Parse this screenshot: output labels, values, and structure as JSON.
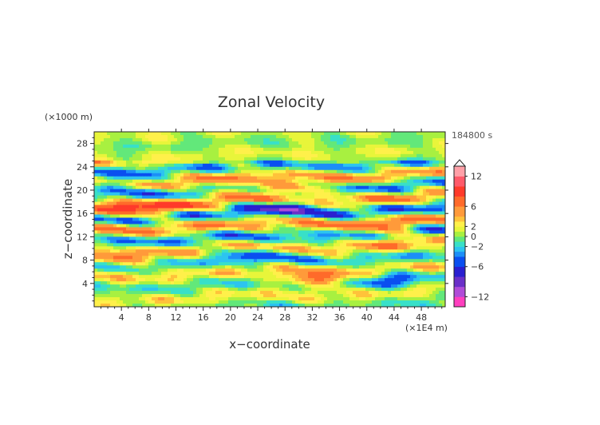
{
  "chart_data": {
    "type": "heatmap",
    "title": "Zonal Velocity",
    "xlabel": "x−coordinate",
    "ylabel": "z−coordinate",
    "x_unit": "(×1E4 m)",
    "y_unit": "(×1000 m)",
    "time_label": "184800 s",
    "xlim": [
      0,
      51.5
    ],
    "ylim": [
      0,
      30
    ],
    "x_ticks": [
      "4",
      "8",
      "12",
      "16",
      "20",
      "24",
      "28",
      "32",
      "36",
      "40",
      "44",
      "48"
    ],
    "x_tick_values": [
      4,
      8,
      12,
      16,
      20,
      24,
      28,
      32,
      36,
      40,
      44,
      48
    ],
    "y_ticks": [
      "4",
      "8",
      "12",
      "16",
      "20",
      "24",
      "28"
    ],
    "y_tick_values": [
      4,
      8,
      12,
      16,
      20,
      24,
      28
    ],
    "colorbar": {
      "tick_labels": [
        "12",
        "6",
        "2",
        "0",
        "−2",
        "−6",
        "−12"
      ],
      "tick_values": [
        12,
        6,
        2,
        0,
        -2,
        -6,
        -12
      ],
      "levels": [
        -14,
        -12,
        -10,
        -8,
        -6,
        -4,
        -3,
        -2,
        -1,
        0,
        1,
        2,
        3,
        4,
        6,
        8,
        10,
        12,
        14
      ],
      "colors": [
        "#ff3fbf",
        "#b04cd8",
        "#6a2fc8",
        "#2a1fd0",
        "#0a4ff0",
        "#1c8ef8",
        "#2cc4f0",
        "#38e0c8",
        "#62e87a",
        "#a8f040",
        "#e8f53a",
        "#fff04a",
        "#ffc23a",
        "#ff9a3a",
        "#ff6a2a",
        "#ff3a2a",
        "#ff5a6a",
        "#ffa0a8"
      ]
    },
    "field_description_values": [
      {
        "z_center": 21,
        "x_start": 0,
        "x_end": 8,
        "sign": -1
      },
      {
        "z_center": 17,
        "x_start": 0,
        "x_end": 14,
        "sign": 1
      },
      {
        "z_center": 20,
        "x_start": 18,
        "x_end": 36,
        "sign": 1
      },
      {
        "z_center": 18,
        "x_start": 24,
        "x_end": 32,
        "sign": -1
      },
      {
        "z_center": 5,
        "x_start": 29,
        "x_end": 36,
        "sign": 1
      },
      {
        "z_center": 12,
        "x_start": 40,
        "x_end": 46,
        "sign": 1
      }
    ]
  }
}
